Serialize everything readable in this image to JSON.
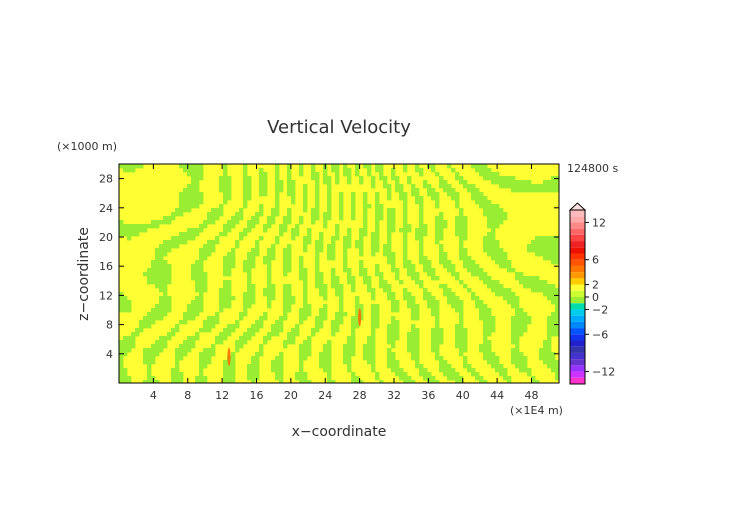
{
  "chart_data": {
    "type": "heatmap",
    "title": "Vertical Velocity",
    "xlabel": "x−coordinate",
    "ylabel": "z−coordinate",
    "x_unit": "(×1E4 m)",
    "y_unit": "(×1000 m)",
    "time_label": "124800 s",
    "xlim": [
      0,
      51.2
    ],
    "ylim": [
      0,
      30
    ],
    "x_ticks": [
      "4",
      "8",
      "12",
      "16",
      "20",
      "24",
      "28",
      "32",
      "36",
      "40",
      "44",
      "48"
    ],
    "y_ticks": [
      "4",
      "8",
      "12",
      "16",
      "20",
      "24",
      "28"
    ],
    "colorbar": {
      "tick_labels": [
        "12",
        "6",
        "2",
        "0",
        "−2",
        "−6",
        "−12"
      ],
      "levels": [
        -14,
        -13,
        -12,
        -11,
        -10,
        -9,
        -8,
        -7,
        -6,
        -5,
        -4,
        -3,
        -2,
        -1,
        0,
        1,
        2,
        3,
        4,
        5,
        6,
        7,
        8,
        9,
        10,
        11,
        12,
        13,
        14
      ],
      "colors": [
        "#ff33cc",
        "#cc33ff",
        "#9933ff",
        "#6633cc",
        "#4433cc",
        "#3333aa",
        "#2222cc",
        "#1133ee",
        "#0055ff",
        "#0088ff",
        "#00aaff",
        "#00ccee",
        "#00ddaa",
        "#99ee33",
        "#ccff33",
        "#ffff33",
        "#ffcc00",
        "#ff9900",
        "#ff7700",
        "#ff5500",
        "#ff3300",
        "#ee1100",
        "#ee2222",
        "#ff4444",
        "#ff6666",
        "#ff8888",
        "#ffaaaa",
        "#ffbbbb"
      ],
      "extend": "max"
    },
    "features": [
      {
        "x": 12.8,
        "z": 3.6,
        "value": 4
      },
      {
        "x": 28.0,
        "z": 9.0,
        "value": 6
      }
    ],
    "pattern_colors": {
      "high": "#ffff33",
      "low": "#99ee33"
    }
  }
}
